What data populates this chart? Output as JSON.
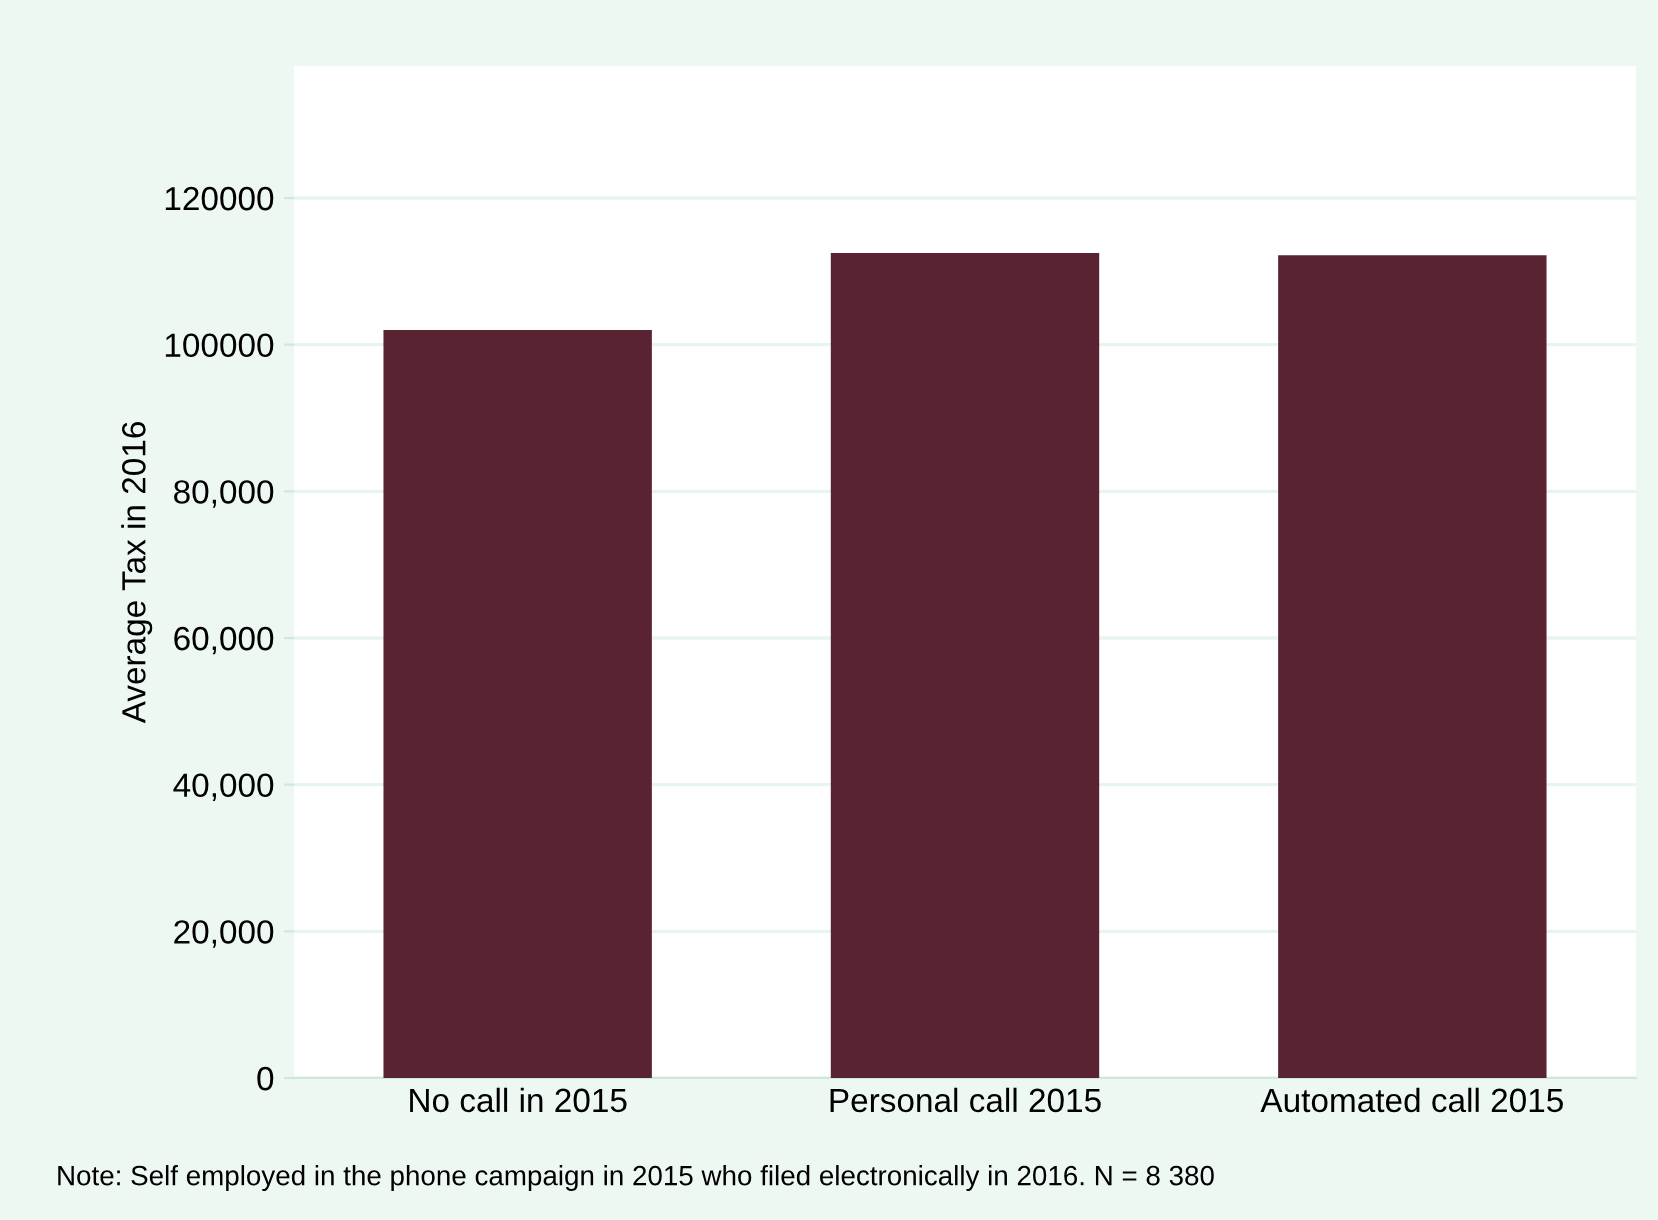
{
  "chart_data": {
    "type": "bar",
    "ylabel": "Average Tax in 2016",
    "categories": [
      "No call in 2015",
      "Personal call 2015",
      "Automated call 2015"
    ],
    "values": [
      102000,
      112500,
      112200
    ],
    "color": "#5a2331",
    "ylim": [
      0,
      138000
    ],
    "yticks": [
      0,
      {
        "value": 20000,
        "label": "20,000"
      },
      {
        "value": 40000,
        "label": "40,000"
      },
      {
        "value": 60000,
        "label": "60,000"
      },
      {
        "value": 80000,
        "label": "80,000"
      },
      100000,
      120000
    ],
    "grid": "y",
    "annotations": [
      "Note: Self employed in the phone campaign in 2015 who filed electronically in 2016. N = 8 380"
    ]
  }
}
